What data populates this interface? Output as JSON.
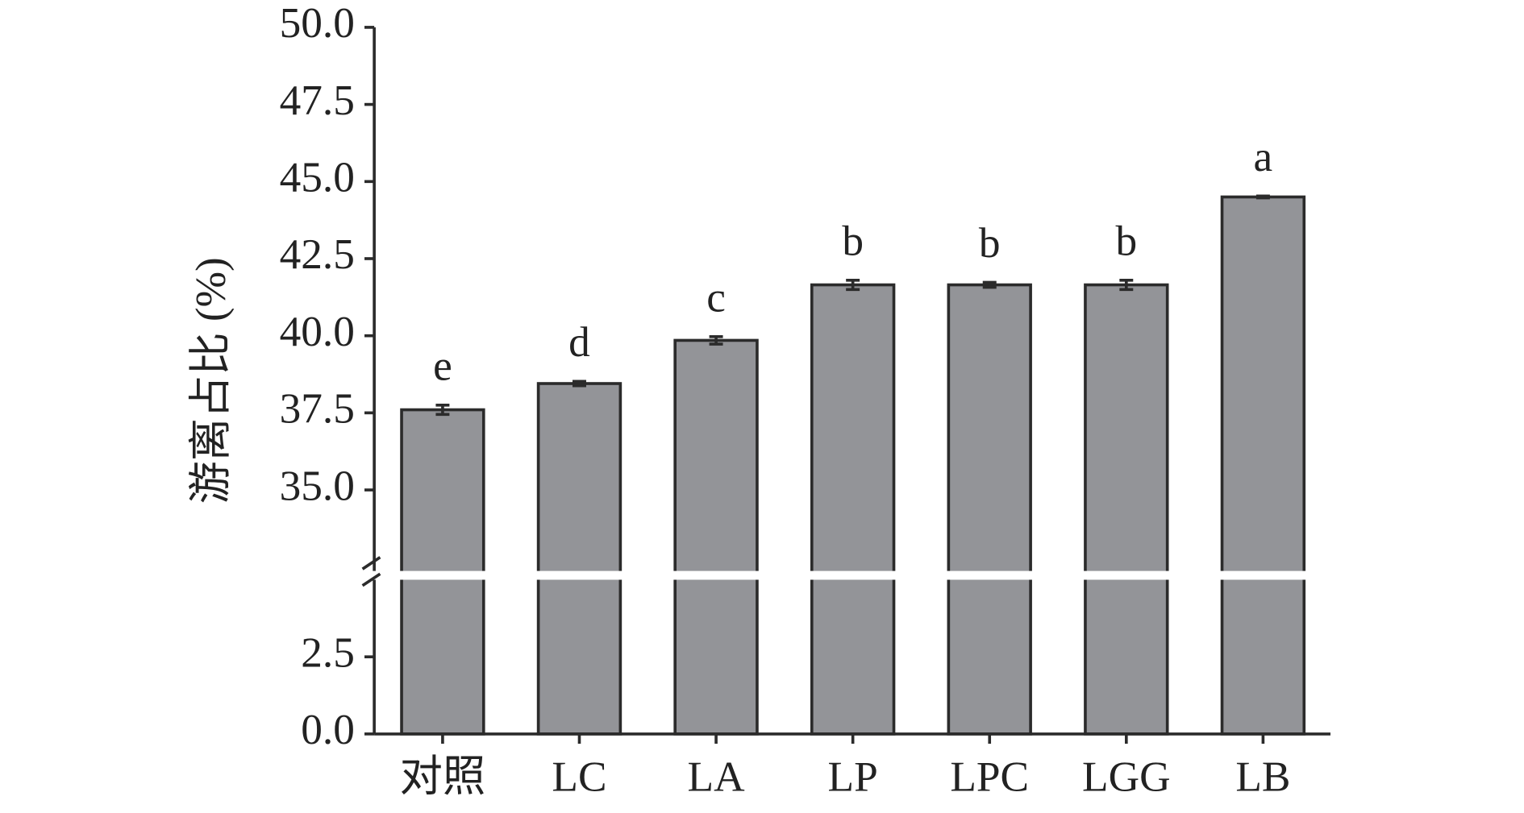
{
  "chart_data": {
    "type": "bar",
    "y_label": "游离占比 (%)",
    "categories": [
      "对照",
      "LC",
      "LA",
      "LP",
      "LPC",
      "LGG",
      "LB"
    ],
    "values": [
      37.6,
      38.45,
      39.85,
      41.65,
      41.65,
      41.65,
      44.5
    ],
    "errors": [
      0.15,
      0.07,
      0.12,
      0.15,
      0.08,
      0.15,
      0.03
    ],
    "value_labels": [
      "e",
      "d",
      "c",
      "b",
      "b",
      "b",
      "a"
    ],
    "color": "#939498",
    "ylim": [
      0,
      50
    ],
    "y_break": [
      5,
      32.5
    ],
    "yticks": [
      {
        "value": 0,
        "label": "0.0"
      },
      2.5,
      {
        "value": 35,
        "label": "35.0"
      },
      37.5,
      {
        "value": 40,
        "label": "40.0"
      },
      42.5,
      {
        "value": 45,
        "label": "45.0"
      },
      47.5,
      {
        "value": 50,
        "label": "50.0"
      }
    ]
  }
}
